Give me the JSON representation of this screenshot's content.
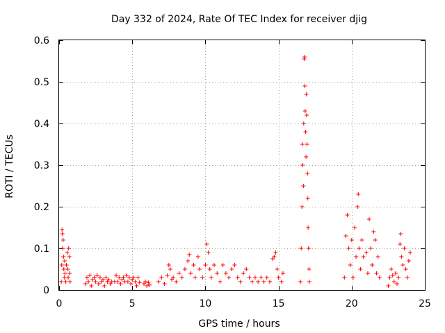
{
  "chart_data": {
    "type": "scatter",
    "title": "Day 332 of 2024, Rate Of TEC Index for receiver djig",
    "xlabel": "GPS time / hours",
    "ylabel": "ROTI / TECUs",
    "xlim": [
      0,
      25
    ],
    "ylim": [
      0,
      0.6
    ],
    "xticks": [
      0,
      5,
      10,
      15,
      20,
      25
    ],
    "xtick_labels": [
      "0",
      "5",
      "10",
      "15",
      "20",
      "25"
    ],
    "yticks": [
      0,
      0.1,
      0.2,
      0.3,
      0.4,
      0.5,
      0.6
    ],
    "ytick_labels": [
      "0",
      "0.1",
      "0.2",
      "0.3",
      "0.4",
      "0.5",
      "0.6"
    ],
    "grid": true,
    "marker": "+",
    "color": "#ff0000",
    "series": [
      {
        "name": "ROTI",
        "points": [
          [
            0.15,
            0.02
          ],
          [
            0.18,
            0.06
          ],
          [
            0.2,
            0.145
          ],
          [
            0.22,
            0.135
          ],
          [
            0.25,
            0.1
          ],
          [
            0.28,
            0.12
          ],
          [
            0.3,
            0.08
          ],
          [
            0.32,
            0.05
          ],
          [
            0.35,
            0.03
          ],
          [
            0.38,
            0.07
          ],
          [
            0.4,
            0.04
          ],
          [
            0.45,
            0.02
          ],
          [
            0.5,
            0.06
          ],
          [
            0.55,
            0.09
          ],
          [
            0.6,
            0.05
          ],
          [
            0.62,
            0.03
          ],
          [
            0.65,
            0.1
          ],
          [
            0.7,
            0.08
          ],
          [
            0.72,
            0.04
          ],
          [
            0.75,
            0.02
          ],
          [
            1.8,
            0.015
          ],
          [
            1.9,
            0.03
          ],
          [
            2.0,
            0.02
          ],
          [
            2.1,
            0.035
          ],
          [
            2.2,
            0.01
          ],
          [
            2.3,
            0.025
          ],
          [
            2.4,
            0.03
          ],
          [
            2.5,
            0.02
          ],
          [
            2.6,
            0.035
          ],
          [
            2.7,
            0.015
          ],
          [
            2.8,
            0.03
          ],
          [
            2.9,
            0.02
          ],
          [
            3.0,
            0.025
          ],
          [
            3.1,
            0.01
          ],
          [
            3.2,
            0.03
          ],
          [
            3.3,
            0.02
          ],
          [
            3.4,
            0.025
          ],
          [
            3.5,
            0.015
          ],
          [
            3.6,
            0.02
          ],
          [
            3.8,
            0.02
          ],
          [
            3.9,
            0.035
          ],
          [
            4.0,
            0.02
          ],
          [
            4.1,
            0.03
          ],
          [
            4.2,
            0.015
          ],
          [
            4.3,
            0.025
          ],
          [
            4.4,
            0.03
          ],
          [
            4.5,
            0.02
          ],
          [
            4.6,
            0.035
          ],
          [
            4.7,
            0.02
          ],
          [
            4.8,
            0.03
          ],
          [
            4.9,
            0.015
          ],
          [
            5.0,
            0.025
          ],
          [
            5.1,
            0.03
          ],
          [
            5.2,
            0.02
          ],
          [
            5.3,
            0.01
          ],
          [
            5.4,
            0.03
          ],
          [
            5.5,
            0.018
          ],
          [
            5.8,
            0.015
          ],
          [
            5.9,
            0.02
          ],
          [
            6.0,
            0.01
          ],
          [
            6.1,
            0.018
          ],
          [
            6.2,
            0.012
          ],
          [
            6.8,
            0.02
          ],
          [
            7.0,
            0.03
          ],
          [
            7.2,
            0.015
          ],
          [
            7.4,
            0.035
          ],
          [
            7.5,
            0.06
          ],
          [
            7.6,
            0.05
          ],
          [
            7.7,
            0.025
          ],
          [
            7.8,
            0.03
          ],
          [
            8.0,
            0.02
          ],
          [
            8.2,
            0.04
          ],
          [
            8.4,
            0.03
          ],
          [
            8.6,
            0.05
          ],
          [
            8.8,
            0.07
          ],
          [
            8.9,
            0.085
          ],
          [
            9.0,
            0.04
          ],
          [
            9.2,
            0.06
          ],
          [
            9.3,
            0.03
          ],
          [
            9.5,
            0.08
          ],
          [
            9.6,
            0.05
          ],
          [
            9.8,
            0.03
          ],
          [
            10.0,
            0.06
          ],
          [
            10.1,
            0.11
          ],
          [
            10.2,
            0.09
          ],
          [
            10.3,
            0.05
          ],
          [
            10.4,
            0.03
          ],
          [
            10.6,
            0.06
          ],
          [
            10.8,
            0.04
          ],
          [
            11.0,
            0.02
          ],
          [
            11.2,
            0.06
          ],
          [
            11.4,
            0.04
          ],
          [
            11.6,
            0.03
          ],
          [
            11.8,
            0.05
          ],
          [
            12.0,
            0.06
          ],
          [
            12.2,
            0.03
          ],
          [
            12.4,
            0.02
          ],
          [
            12.6,
            0.04
          ],
          [
            12.8,
            0.05
          ],
          [
            13.0,
            0.03
          ],
          [
            13.2,
            0.02
          ],
          [
            13.4,
            0.03
          ],
          [
            13.6,
            0.02
          ],
          [
            13.8,
            0.03
          ],
          [
            14.0,
            0.02
          ],
          [
            14.2,
            0.03
          ],
          [
            14.4,
            0.02
          ],
          [
            14.6,
            0.075
          ],
          [
            14.7,
            0.08
          ],
          [
            14.8,
            0.09
          ],
          [
            14.9,
            0.05
          ],
          [
            15.0,
            0.03
          ],
          [
            15.2,
            0.02
          ],
          [
            15.3,
            0.04
          ],
          [
            16.5,
            0.02
          ],
          [
            16.55,
            0.1
          ],
          [
            16.6,
            0.2
          ],
          [
            16.62,
            0.35
          ],
          [
            16.65,
            0.3
          ],
          [
            16.7,
            0.25
          ],
          [
            16.72,
            0.4
          ],
          [
            16.75,
            0.555
          ],
          [
            16.78,
            0.56
          ],
          [
            16.8,
            0.49
          ],
          [
            16.82,
            0.43
          ],
          [
            16.85,
            0.38
          ],
          [
            16.88,
            0.32
          ],
          [
            16.9,
            0.47
          ],
          [
            16.92,
            0.42
          ],
          [
            16.95,
            0.35
          ],
          [
            16.98,
            0.28
          ],
          [
            17.0,
            0.22
          ],
          [
            17.02,
            0.15
          ],
          [
            17.05,
            0.1
          ],
          [
            17.08,
            0.05
          ],
          [
            17.1,
            0.02
          ],
          [
            19.5,
            0.03
          ],
          [
            19.6,
            0.13
          ],
          [
            19.7,
            0.18
          ],
          [
            19.8,
            0.1
          ],
          [
            19.9,
            0.06
          ],
          [
            20.0,
            0.12
          ],
          [
            20.1,
            0.03
          ],
          [
            20.2,
            0.15
          ],
          [
            20.3,
            0.08
          ],
          [
            20.4,
            0.2
          ],
          [
            20.45,
            0.23
          ],
          [
            20.5,
            0.1
          ],
          [
            20.6,
            0.05
          ],
          [
            20.7,
            0.12
          ],
          [
            20.8,
            0.08
          ],
          [
            21.0,
            0.09
          ],
          [
            21.1,
            0.04
          ],
          [
            21.2,
            0.17
          ],
          [
            21.3,
            0.1
          ],
          [
            21.4,
            0.06
          ],
          [
            21.5,
            0.14
          ],
          [
            21.6,
            0.12
          ],
          [
            21.7,
            0.04
          ],
          [
            21.8,
            0.08
          ],
          [
            21.9,
            0.03
          ],
          [
            22.5,
            0.01
          ],
          [
            22.6,
            0.03
          ],
          [
            22.7,
            0.05
          ],
          [
            22.8,
            0.035
          ],
          [
            22.9,
            0.02
          ],
          [
            23.0,
            0.04
          ],
          [
            23.1,
            0.015
          ],
          [
            23.2,
            0.03
          ],
          [
            23.3,
            0.11
          ],
          [
            23.35,
            0.135
          ],
          [
            23.4,
            0.08
          ],
          [
            23.5,
            0.06
          ],
          [
            23.6,
            0.1
          ],
          [
            23.7,
            0.05
          ],
          [
            23.8,
            0.03
          ],
          [
            23.9,
            0.07
          ],
          [
            24.0,
            0.09
          ]
        ]
      }
    ]
  }
}
